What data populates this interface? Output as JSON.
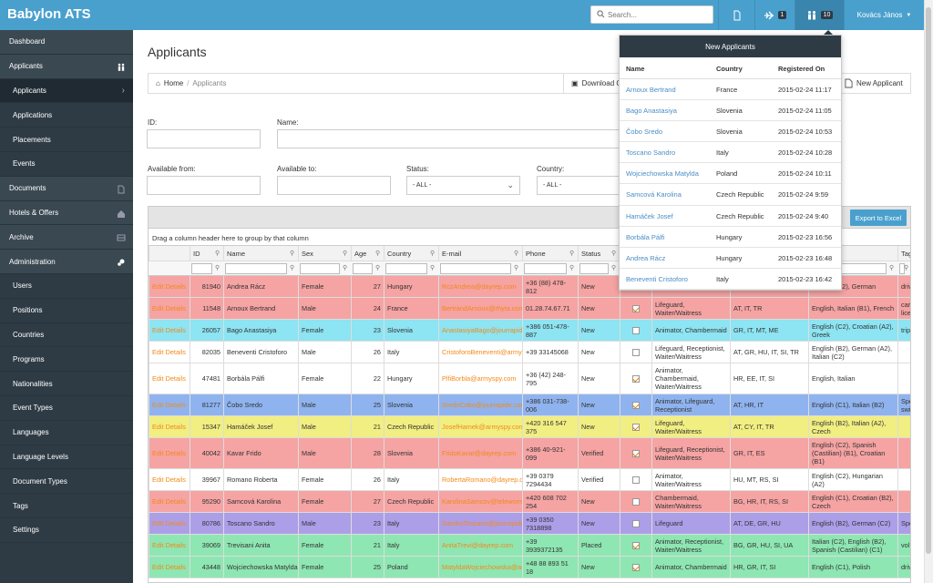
{
  "app": {
    "title": "Babylon ATS"
  },
  "topbar": {
    "search_placeholder": "Search...",
    "flights_count": "1",
    "applicants_count": "10",
    "user_name": "Kovács János"
  },
  "sidebar": {
    "items": [
      {
        "label": "Dashboard",
        "icon": "",
        "type": "section"
      },
      {
        "label": "Applicants",
        "icon": "people-icon",
        "type": "section"
      },
      {
        "label": "Applicants",
        "icon": "chevron-right-icon",
        "type": "sub-current"
      },
      {
        "label": "Applications",
        "icon": "",
        "type": "sub"
      },
      {
        "label": "Placements",
        "icon": "",
        "type": "sub"
      },
      {
        "label": "Events",
        "icon": "",
        "type": "sub"
      },
      {
        "label": "Documents",
        "icon": "document-icon",
        "type": "section"
      },
      {
        "label": "Hotels & Offers",
        "icon": "home-icon",
        "type": "section"
      },
      {
        "label": "Archive",
        "icon": "archive-icon",
        "type": "section"
      },
      {
        "label": "Administration",
        "icon": "gears-icon",
        "type": "section"
      },
      {
        "label": "Users",
        "icon": "",
        "type": "sub"
      },
      {
        "label": "Positions",
        "icon": "",
        "type": "sub"
      },
      {
        "label": "Countries",
        "icon": "",
        "type": "sub"
      },
      {
        "label": "Programs",
        "icon": "",
        "type": "sub"
      },
      {
        "label": "Nationalities",
        "icon": "",
        "type": "sub"
      },
      {
        "label": "Event Types",
        "icon": "",
        "type": "sub"
      },
      {
        "label": "Languages",
        "icon": "",
        "type": "sub"
      },
      {
        "label": "Language Levels",
        "icon": "",
        "type": "sub"
      },
      {
        "label": "Document Types",
        "icon": "",
        "type": "sub"
      },
      {
        "label": "Tags",
        "icon": "",
        "type": "sub"
      },
      {
        "label": "Settings",
        "icon": "",
        "type": "sub"
      }
    ]
  },
  "page": {
    "title": "Applicants",
    "breadcrumb_home": "Home",
    "breadcrumb_current": "Applicants",
    "download_label": "Download C",
    "new_applicant_label": "New Applicant"
  },
  "filters": {
    "id_label": "ID:",
    "name_label": "Name:",
    "available_from_label": "Available from:",
    "available_to_label": "Available to:",
    "status_label": "Status:",
    "status_value": "- ALL -",
    "country_label": "Country:",
    "country_value": "- ALL -"
  },
  "grid": {
    "export_label": "Export to Excel",
    "group_hint": "Drag a column header here to group by that column",
    "columns": [
      "",
      "ID",
      "Name",
      "Sex",
      "Age",
      "Country",
      "E-mail",
      "Phone",
      "Status",
      "",
      "",
      "",
      "",
      "Tag"
    ],
    "rows": [
      {
        "action": "Edit Details",
        "id": "81940",
        "name": "Andrea Rácz",
        "sex": "Female",
        "age": "27",
        "country": "Hungary",
        "email": "RczAndrea@dayrep.com",
        "phone": "+36 (88) 478-812",
        "status": "New",
        "checked": false,
        "positions": "Chambermaid",
        "countries": "HU, HR, SI",
        "languages": "English (B2), German",
        "tag": "driv",
        "color": "#f5a3a3"
      },
      {
        "action": "Edit Details",
        "id": "11548",
        "name": "Arnoux Bertrand",
        "sex": "Male",
        "age": "24",
        "country": "France",
        "email": "BertrandArnoux@rhyta.com",
        "phone": "01.28.74.67.71",
        "status": "New",
        "checked": true,
        "positions": "Lifeguard, Waiter/Waitress",
        "countries": "AT, IT, TR",
        "languages": "English, Italian (B1), French",
        "tag": "car lice",
        "color": "#f5a3a3"
      },
      {
        "action": "Edit Details",
        "id": "26057",
        "name": "Bago Anastasiya",
        "sex": "Female",
        "age": "23",
        "country": "Slovenia",
        "email": "AnastasiyaBago@jourrapide.com",
        "phone": "+386 051-478-887",
        "status": "New",
        "checked": false,
        "positions": "Animator, Chambermaid",
        "countries": "GR, IT, MT, ME",
        "languages": "English (C2), Croatian (A2), Greek",
        "tag": "trip",
        "color": "#8de4f2"
      },
      {
        "action": "Edit Details",
        "id": "82035",
        "name": "Beneventi Cristoforo",
        "sex": "Male",
        "age": "26",
        "country": "Italy",
        "email": "CristoforoBeneventi@armyspy.com",
        "phone": "+39 33145068",
        "status": "New",
        "checked": false,
        "positions": "Lifeguard, Receptionist, Waiter/Waitress",
        "countries": "AT, GR, HU, IT, SI, TR",
        "languages": "English (B2), German (A2), Italian (C2)",
        "tag": "",
        "color": "#ffffff"
      },
      {
        "action": "Edit Details",
        "id": "47481",
        "name": "Borbála Pálfi",
        "sex": "Female",
        "age": "22",
        "country": "Hungary",
        "email": "PlfiBorbla@armyspy.com",
        "phone": "+36 (42) 248-795",
        "status": "New",
        "checked": true,
        "positions": "Animator, Chambermaid, Waiter/Waitress",
        "countries": "HR, EE, IT, SI",
        "languages": "English, Italian",
        "tag": "",
        "color": "#ffffff"
      },
      {
        "action": "Edit Details",
        "id": "81277",
        "name": "Čobo Sredo",
        "sex": "Male",
        "age": "25",
        "country": "Slovenia",
        "email": "SredoCobo@jourrapide.com",
        "phone": "+386 031-738-006",
        "status": "New",
        "checked": true,
        "positions": "Animator, Lifeguard, Receptionist",
        "countries": "AT, HR, IT",
        "languages": "English (C1), Italian (B2)",
        "tag": "Spo swi",
        "color": "#8fb3ee"
      },
      {
        "action": "Edit Details",
        "id": "15347",
        "name": "Hamáček Josef",
        "sex": "Male",
        "age": "21",
        "country": "Czech Republic",
        "email": "JosefHamek@armyspy.com",
        "phone": "+420 316 547 375",
        "status": "New",
        "checked": true,
        "positions": "Lifeguard, Waiter/Waitress",
        "countries": "AT, CY, IT, TR",
        "languages": "English (B2), Italian (A2), Czech",
        "tag": "",
        "color": "#f1ee82"
      },
      {
        "action": "Edit Details",
        "id": "40042",
        "name": "Kavar Frido",
        "sex": "Male",
        "age": "28",
        "country": "Slovenia",
        "email": "FridoKavar@dayrep.com",
        "phone": "+386 40-921-099",
        "status": "Verified",
        "checked": true,
        "positions": "Lifeguard, Receptionist, Waiter/Waitress",
        "countries": "GR, IT, ES",
        "languages": "English (C2), Spanish (Castilian) (B1), Croatian (B1)",
        "tag": "",
        "color": "#f5a3a3"
      },
      {
        "action": "Edit Details",
        "id": "39967",
        "name": "Romano Roberta",
        "sex": "Female",
        "age": "26",
        "country": "Italy",
        "email": "RobertaRomano@dayrep.com",
        "phone": "+39 0379 7294434",
        "status": "Verified",
        "checked": false,
        "positions": "Animator, Waiter/Waitress",
        "countries": "HU, MT, RS, SI",
        "languages": "English (C2), Hungarian (A2)",
        "tag": "",
        "color": "#ffffff"
      },
      {
        "action": "Edit Details",
        "id": "95290",
        "name": "Samcová Karolina",
        "sex": "Female",
        "age": "27",
        "country": "Czech Republic",
        "email": "KarolinaSamcov@teleworm.us",
        "phone": "+420 608 702 254",
        "status": "New",
        "checked": false,
        "positions": "Chambermaid, Waiter/Waitress",
        "countries": "BG, HR, IT, RS, SI",
        "languages": "English (C1), Croatian (B2), Czech",
        "tag": "",
        "color": "#f5a3a3"
      },
      {
        "action": "Edit Details",
        "id": "80786",
        "name": "Toscano Sandro",
        "sex": "Male",
        "age": "23",
        "country": "Italy",
        "email": "SandroToscano@jourrapide.com",
        "phone": "+39 0350 7318898",
        "status": "New",
        "checked": false,
        "positions": "Lifeguard",
        "countries": "AT, DE, GR, HU",
        "languages": "English (B2), German (C2)",
        "tag": "Spo",
        "color": "#ad9ee8"
      },
      {
        "action": "Edit Details",
        "id": "39069",
        "name": "Trevisani Anita",
        "sex": "Female",
        "age": "21",
        "country": "Italy",
        "email": "AnitaTrevi@dayrep.com",
        "phone": "+39 3939372135",
        "status": "Placed",
        "checked": true,
        "positions": "Animator, Receptionist, Waiter/Waitress",
        "countries": "BG, GR, HU, SI, UA",
        "languages": "Italian (C2), English (B2), Spanish (Castilian) (C1)",
        "tag": "vol",
        "color": "#8ee6b2"
      },
      {
        "action": "Edit Details",
        "id": "43448",
        "name": "Wojciechowska Matylda",
        "sex": "Female",
        "age": "25",
        "country": "Poland",
        "email": "MatyldaWojciechowska@armyspy.com",
        "phone": "+48 88 893 51 18",
        "status": "New",
        "checked": true,
        "positions": "Animator, Chambermaid",
        "countries": "HR, GR, IT, SI",
        "languages": "English (C1), Polish",
        "tag": "driv",
        "color": "#8ee6b2"
      }
    ]
  },
  "popup": {
    "title": "New Applicants",
    "col_name": "Name",
    "col_country": "Country",
    "col_registered": "Registered On",
    "rows": [
      {
        "name": "Arnoux Bertrand",
        "country": "France",
        "date": "2015-02-24 11:17"
      },
      {
        "name": "Bago Anastasiya",
        "country": "Slovenia",
        "date": "2015-02-24 11:05"
      },
      {
        "name": "Čobo Sredo",
        "country": "Slovenia",
        "date": "2015-02-24 10:53"
      },
      {
        "name": "Toscano Sandro",
        "country": "Italy",
        "date": "2015-02-24 10:28"
      },
      {
        "name": "Wojciechowska Matylda",
        "country": "Poland",
        "date": "2015-02-24 10:11"
      },
      {
        "name": "Samcová Karolina",
        "country": "Czech Republic",
        "date": "2015-02-24 9:59"
      },
      {
        "name": "Hamáček Josef",
        "country": "Czech Republic",
        "date": "2015-02-24 9:40"
      },
      {
        "name": "Borbála Pálfi",
        "country": "Hungary",
        "date": "2015-02-23 16:56"
      },
      {
        "name": "Andrea Rácz",
        "country": "Hungary",
        "date": "2015-02-23 16:48"
      },
      {
        "name": "Beneventi Cristoforo",
        "country": "Italy",
        "date": "2015-02-23 16:42"
      }
    ]
  }
}
